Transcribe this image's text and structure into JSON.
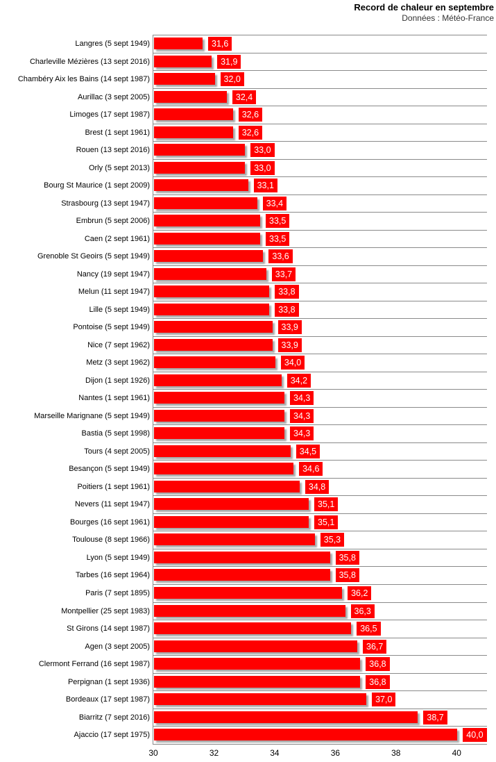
{
  "header": {
    "title": "Record de chaleur en septembre",
    "subtitle": "Données : Météo-France"
  },
  "chart_data": {
    "type": "bar",
    "orientation": "horizontal",
    "title": "Record de chaleur en septembre",
    "subtitle": "Données : Météo-France",
    "xlabel": "",
    "ylabel": "",
    "xlim": [
      30,
      41
    ],
    "xticks": [
      30,
      32,
      34,
      36,
      38,
      40
    ],
    "xtick_labels": [
      "30",
      "32",
      "34",
      "36",
      "38",
      "40"
    ],
    "grid": "horizontal-category-separators",
    "legend": "none",
    "bar_color": "#ff0000",
    "value_label_bg": "#ff0000",
    "value_label_text_color": "#ffffff",
    "separator_color": "#8a8a8a",
    "categories": [
      "Langres (5 sept 1949)",
      "Charleville Mézières (13 sept 2016)",
      "Chambéry Aix les Bains (14 sept 1987)",
      "Aurillac (3 sept 2005)",
      "Limoges (17 sept 1987)",
      "Brest (1 sept 1961)",
      "Rouen (13 sept 2016)",
      "Orly (5 sept 2013)",
      "Bourg St Maurice (1 sept 2009)",
      "Strasbourg (13 sept 1947)",
      "Embrun (5 sept 2006)",
      "Caen (2 sept 1961)",
      "Grenoble St Geoirs (5 sept 1949)",
      "Nancy (19 sept 1947)",
      "Melun (11 sept 1947)",
      "Lille (5 sept 1949)",
      "Pontoise (5 sept 1949)",
      "Nice (7 sept 1962)",
      "Metz (3 sept 1962)",
      "Dijon (1 sept 1926)",
      "Nantes (1 sept 1961)",
      "Marseille Marignane (5 sept 1949)",
      "Bastia (5 sept 1998)",
      "Tours (4 sept 2005)",
      "Besançon (5 sept 1949)",
      "Poitiers (1 sept 1961)",
      "Nevers (11 sept 1947)",
      "Bourges (16 sept 1961)",
      "Toulouse (8 sept 1966)",
      "Lyon (5 sept 1949)",
      "Tarbes (16 sept 1964)",
      "Paris (7 sept 1895)",
      "Montpellier (25 sept 1983)",
      "St Girons (14 sept 1987)",
      "Agen (3 sept 2005)",
      "Clermont Ferrand (16 sept 1987)",
      "Perpignan (1 sept 1936)",
      "Bordeaux (17 sept 1987)",
      "Biarritz (7 sept 2016)",
      "Ajaccio (17 sept 1975)"
    ],
    "values": [
      31.6,
      31.9,
      32.0,
      32.4,
      32.6,
      32.6,
      33.0,
      33.0,
      33.1,
      33.4,
      33.5,
      33.5,
      33.6,
      33.7,
      33.8,
      33.8,
      33.9,
      33.9,
      34.0,
      34.2,
      34.3,
      34.3,
      34.3,
      34.5,
      34.6,
      34.8,
      35.1,
      35.1,
      35.3,
      35.8,
      35.8,
      36.2,
      36.3,
      36.5,
      36.7,
      36.8,
      36.8,
      37.0,
      38.7,
      40.0
    ],
    "value_labels": [
      "31,6",
      "31,9",
      "32,0",
      "32,4",
      "32,6",
      "32,6",
      "33,0",
      "33,0",
      "33,1",
      "33,4",
      "33,5",
      "33,5",
      "33,6",
      "33,7",
      "33,8",
      "33,8",
      "33,9",
      "33,9",
      "34,0",
      "34,2",
      "34,3",
      "34,3",
      "34,3",
      "34,5",
      "34,6",
      "34,8",
      "35,1",
      "35,1",
      "35,3",
      "35,8",
      "35,8",
      "36,2",
      "36,3",
      "36,5",
      "36,7",
      "36,8",
      "36,8",
      "37,0",
      "38,7",
      "40,0"
    ]
  }
}
